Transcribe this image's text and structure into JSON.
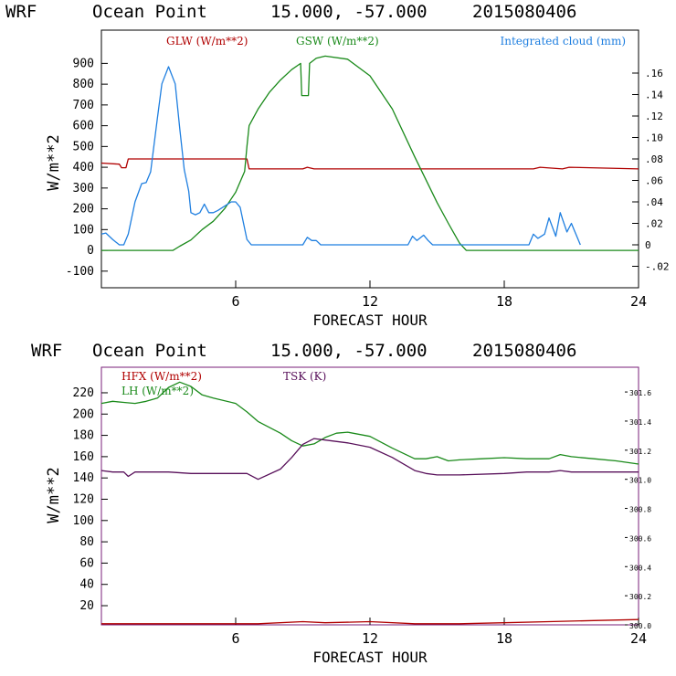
{
  "chart_data": [
    {
      "type": "line",
      "header": {
        "model": "WRF",
        "location": "Ocean Point",
        "coords": "15.000, -57.000",
        "run": "2015080406"
      },
      "xlabel": "FORECAST HOUR",
      "ylabel": "W/m**2",
      "xlim": [
        0,
        24
      ],
      "ylim": [
        -180,
        1060
      ],
      "x_ticks": [
        "6",
        "12",
        "18",
        "24"
      ],
      "y_ticks": [
        "900",
        "800",
        "700",
        "600",
        "500",
        "400",
        "300",
        "200",
        "100",
        "0",
        "-100"
      ],
      "right_ylim": [
        -0.04,
        0.2
      ],
      "right_ticks": [
        ".16",
        ".14",
        ".12",
        ".10",
        ".08",
        ".06",
        ".04",
        ".02",
        "0",
        "-.02"
      ],
      "legend": [
        "GLW (W/m**2)",
        "GSW (W/m**2)",
        "Integrated cloud (mm)"
      ],
      "series": [
        {
          "name": "GLW (W/m**2)",
          "axis": "left",
          "color": "#b00000",
          "x": [
            0,
            0.8,
            0.9,
            1.1,
            1.2,
            6.5,
            6.6,
            9,
            9.2,
            9.5,
            18,
            19.3,
            19.6,
            20.6,
            20.9,
            24
          ],
          "y": [
            420,
            415,
            398,
            398,
            440,
            440,
            392,
            392,
            400,
            392,
            392,
            392,
            400,
            392,
            400,
            392
          ]
        },
        {
          "name": "GSW (W/m**2)",
          "axis": "left",
          "color": "#1a8a1a",
          "x": [
            0,
            3.2,
            3.5,
            4.0,
            4.5,
            5.0,
            5.5,
            6.0,
            6.4,
            6.5,
            6.6,
            7.0,
            7.5,
            8.0,
            8.5,
            8.9,
            8.95,
            9.25,
            9.3,
            9.6,
            10.0,
            11.0,
            12.0,
            13.0,
            14.0,
            15.0,
            15.5,
            16.0,
            16.3,
            24
          ],
          "y": [
            0,
            0,
            20,
            50,
            100,
            140,
            200,
            280,
            380,
            500,
            600,
            680,
            760,
            820,
            870,
            900,
            745,
            745,
            900,
            925,
            935,
            920,
            840,
            680,
            450,
            230,
            130,
            35,
            0,
            0
          ]
        },
        {
          "name": "Integrated cloud (mm)",
          "axis": "right",
          "color": "#1f7fe0",
          "x": [
            0,
            0.2,
            0.5,
            0.8,
            1.0,
            1.2,
            1.5,
            1.8,
            2.0,
            2.2,
            2.5,
            2.7,
            3.0,
            3.3,
            3.5,
            3.7,
            3.9,
            4.0,
            4.2,
            4.4,
            4.6,
            4.8,
            5.0,
            5.2,
            5.5,
            5.8,
            6.0,
            6.2,
            6.5,
            6.7,
            9.0,
            9.2,
            9.4,
            9.6,
            9.8,
            10.0,
            13.7,
            13.9,
            14.1,
            14.4,
            14.6,
            14.8,
            19.1,
            19.3,
            19.5,
            19.8,
            20.0,
            20.3,
            20.5,
            20.8,
            21.0,
            21.2,
            21.4
          ],
          "y": [
            0.01,
            0.011,
            0.005,
            0,
            0,
            0.01,
            0.04,
            0.057,
            0.058,
            0.068,
            0.118,
            0.15,
            0.166,
            0.15,
            0.108,
            0.07,
            0.05,
            0.03,
            0.028,
            0.03,
            0.038,
            0.03,
            0.03,
            0.032,
            0.036,
            0.04,
            0.04,
            0.035,
            0.005,
            0,
            0,
            0.007,
            0.004,
            0.004,
            0,
            0,
            0,
            0.008,
            0.004,
            0.009,
            0.004,
            0,
            0,
            0.01,
            0.006,
            0.01,
            0.025,
            0.008,
            0.03,
            0.012,
            0.02,
            0.01,
            0
          ]
        }
      ]
    },
    {
      "type": "line",
      "header": {
        "model": "WRF",
        "location": "Ocean Point",
        "coords": "15.000, -57.000",
        "run": "2015080406"
      },
      "xlabel": "FORECAST HOUR",
      "ylabel": "W/m**2",
      "xlim": [
        0,
        24
      ],
      "ylim": [
        2,
        244
      ],
      "x_ticks": [
        "6",
        "12",
        "18",
        "24"
      ],
      "y_ticks": [
        "220",
        "200",
        "180",
        "160",
        "140",
        "120",
        "100",
        "80",
        "60",
        "40",
        "20"
      ],
      "right_ylim": [
        300.0,
        301.77
      ],
      "right_ticks": [
        "301.6",
        "301.4",
        "301.2",
        "301.0",
        "300.8",
        "300.6",
        "300.4",
        "300.2",
        "300.0"
      ],
      "legend": [
        "HFX (W/m**2)",
        "LH  (W/m**2)",
        "TSK (K)"
      ],
      "series": [
        {
          "name": "HFX (W/m**2)",
          "axis": "left",
          "color": "#b00000",
          "x": [
            0,
            3,
            6,
            7,
            9,
            10,
            12,
            14,
            16,
            18,
            20,
            22,
            24
          ],
          "y": [
            3,
            3,
            3,
            3,
            5,
            4,
            5,
            3,
            3,
            4,
            5,
            6,
            7
          ]
        },
        {
          "name": "LH  (W/m**2)",
          "axis": "left",
          "color": "#1a8a1a",
          "x": [
            0,
            0.5,
            1.0,
            1.5,
            2.0,
            2.5,
            3.0,
            3.5,
            4.0,
            4.5,
            5.0,
            6.0,
            6.5,
            7.0,
            8.0,
            8.5,
            9.0,
            9.5,
            10.0,
            10.5,
            11.0,
            12.0,
            13.0,
            14.0,
            14.5,
            15.0,
            15.5,
            16.0,
            17.0,
            18.0,
            19.0,
            20.0,
            20.5,
            21.0,
            22.0,
            23.0,
            24.0
          ],
          "y": [
            210,
            212,
            211,
            210,
            212,
            215,
            225,
            230,
            226,
            218,
            215,
            210,
            202,
            193,
            182,
            175,
            170,
            172,
            178,
            182,
            183,
            179,
            168,
            158,
            158,
            160,
            156,
            157,
            158,
            159,
            158,
            158,
            162,
            160,
            158,
            156,
            153
          ]
        },
        {
          "name": "TSK (K)",
          "axis": "right",
          "color": "#58105a",
          "x": [
            0,
            0.5,
            1.0,
            1.2,
            1.5,
            2.0,
            3.0,
            4.0,
            5.0,
            6.0,
            6.5,
            7.0,
            8.0,
            8.5,
            9.0,
            9.5,
            10.0,
            11.0,
            12.0,
            13.0,
            14.0,
            14.5,
            15.0,
            16.0,
            18.0,
            19.0,
            20.0,
            20.5,
            21.0,
            22.0,
            23.0,
            24.0
          ],
          "y": [
            301.06,
            301.05,
            301.05,
            301.02,
            301.05,
            301.05,
            301.05,
            301.04,
            301.04,
            301.04,
            301.04,
            301.0,
            301.07,
            301.15,
            301.24,
            301.28,
            301.27,
            301.25,
            301.22,
            301.15,
            301.06,
            301.04,
            301.03,
            301.03,
            301.04,
            301.05,
            301.05,
            301.06,
            301.05,
            301.05,
            301.05,
            301.05
          ]
        }
      ]
    }
  ]
}
